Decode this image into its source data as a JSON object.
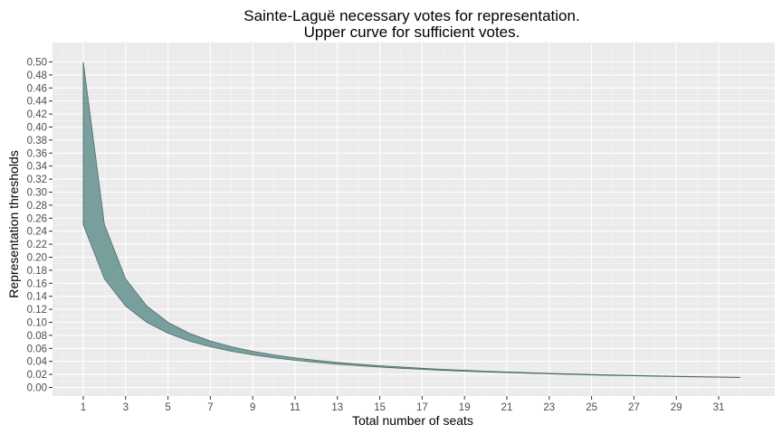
{
  "chart_data": {
    "type": "area",
    "title_lines": [
      "Sainte-Laguë necessary votes for representation.",
      "Upper curve for sufficient votes."
    ],
    "xlabel": "Total number of seats",
    "ylabel": "Representation thresholds",
    "xlim": [
      1,
      32
    ],
    "ylim": [
      0,
      0.5
    ],
    "x_ticks": [
      1,
      3,
      5,
      7,
      9,
      11,
      13,
      15,
      17,
      19,
      21,
      23,
      25,
      27,
      29,
      31
    ],
    "y_ticks": [
      0,
      0.02,
      0.04,
      0.06,
      0.08,
      0.1,
      0.12,
      0.14,
      0.16,
      0.18,
      0.2,
      0.22,
      0.24,
      0.26,
      0.28,
      0.3,
      0.32,
      0.34,
      0.36,
      0.38,
      0.4,
      0.42,
      0.44,
      0.46,
      0.48,
      0.5
    ],
    "y_tick_labels": [
      "0.00",
      "0.02",
      "0.04",
      "0.06",
      "0.08",
      "0.10",
      "0.12",
      "0.14",
      "0.16",
      "0.18",
      "0.20",
      "0.22",
      "0.24",
      "0.26",
      "0.28",
      "0.30",
      "0.32",
      "0.34",
      "0.36",
      "0.38",
      "0.40",
      "0.42",
      "0.44",
      "0.46",
      "0.48",
      "0.50"
    ],
    "x": [
      1,
      2,
      3,
      4,
      5,
      6,
      7,
      8,
      9,
      10,
      11,
      12,
      13,
      14,
      15,
      16,
      17,
      18,
      19,
      20,
      21,
      22,
      23,
      24,
      25,
      26,
      27,
      28,
      29,
      30,
      31,
      32
    ],
    "series": [
      {
        "role": "upper",
        "values": [
          0.5,
          0.25,
          0.1667,
          0.125,
          0.1,
          0.0833,
          0.0714,
          0.0625,
          0.0556,
          0.05,
          0.0455,
          0.0417,
          0.0385,
          0.0357,
          0.0333,
          0.0313,
          0.0294,
          0.0278,
          0.0263,
          0.025,
          0.0238,
          0.0227,
          0.0217,
          0.0208,
          0.02,
          0.0192,
          0.0185,
          0.0179,
          0.0172,
          0.0167,
          0.0161,
          0.0156
        ]
      },
      {
        "role": "lower",
        "values": [
          0.25,
          0.1667,
          0.125,
          0.1,
          0.0833,
          0.0714,
          0.0625,
          0.0556,
          0.05,
          0.0455,
          0.0417,
          0.0385,
          0.0357,
          0.0333,
          0.0313,
          0.0294,
          0.0278,
          0.0263,
          0.025,
          0.0238,
          0.0227,
          0.0217,
          0.0208,
          0.02,
          0.0192,
          0.0185,
          0.0179,
          0.0172,
          0.0167,
          0.0161,
          0.0156,
          0.0152
        ]
      }
    ],
    "grid": true,
    "legend": "none",
    "colors": {
      "panel_background": "#ebebeb",
      "grid_major": "#ffffff",
      "grid_minor": "#f5f5f5",
      "ribbon_fill": "#6f9896",
      "ribbon_edge": "#4a6b6a",
      "tick_mark": "#333333"
    }
  }
}
